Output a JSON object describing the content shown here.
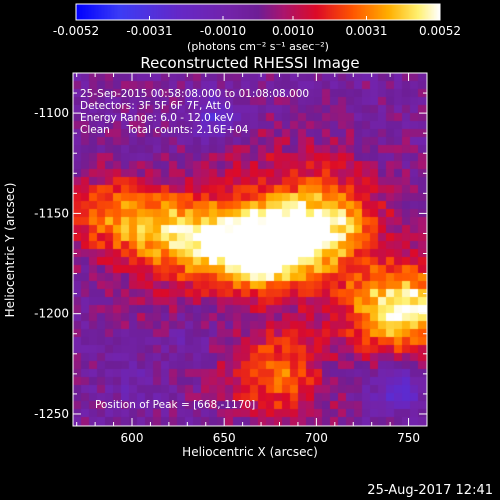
{
  "chart_data": {
    "type": "heatmap",
    "title": "Reconstructed RHESSI Image",
    "xlabel": "Heliocentric X (arcsec)",
    "ylabel": "Heliocentric Y (arcsec)",
    "xlim": [
      568,
      760
    ],
    "ylim": [
      -1256,
      -1080
    ],
    "xticks": [
      600,
      650,
      700,
      750
    ],
    "xtick_labels": [
      "600",
      "650",
      "700",
      "750"
    ],
    "yticks": [
      -1100,
      -1150,
      -1200,
      -1250
    ],
    "ytick_labels": [
      "-1100",
      "-1150",
      "-1200",
      "-1250"
    ],
    "colorbar": {
      "unit_label": "(photons cm⁻² s⁻¹ asec⁻²)",
      "range": [
        -0.0052,
        0.0052
      ],
      "tick_values": [
        -0.0052,
        -0.0031,
        -0.001,
        0.001,
        0.0031,
        0.0052
      ],
      "tick_labels": [
        "-0.0052",
        "-0.0031",
        "-0.0010",
        "0.0010",
        "0.0031",
        "0.0052"
      ]
    },
    "annotations": {
      "time_range": "25-Sep-2015 00:58:08.000 to 01:08:08.000",
      "detectors": "Detectors: 3F 5F 6F 7F, Att 0",
      "energy": "Energy Range: 6.0 - 12.0 keV",
      "clean_counts": "Clean     Total counts: 2.16E+04",
      "peak": "Position of Peak = [668,-1170]"
    },
    "sources": [
      {
        "x": 668,
        "y": -1170,
        "value": 0.0052
      },
      {
        "x": 625,
        "y": -1160,
        "value": 0.0036
      },
      {
        "x": 690,
        "y": -1158,
        "value": 0.0033
      },
      {
        "x": 712,
        "y": -1154,
        "value": 0.0022
      },
      {
        "x": 588,
        "y": -1150,
        "value": 0.0026
      },
      {
        "x": 752,
        "y": -1200,
        "value": 0.004
      },
      {
        "x": 739,
        "y": -1193,
        "value": 0.0018
      },
      {
        "x": 680,
        "y": -1225,
        "value": 0.002
      },
      {
        "x": 682,
        "y": -1238,
        "value": 0.0016
      },
      {
        "x": 664,
        "y": -1122,
        "value": 0.0009
      },
      {
        "x": 708,
        "y": -1125,
        "value": 0.0008
      },
      {
        "x": 608,
        "y": -1198,
        "value": 0.0006
      }
    ],
    "negative_regions": [
      {
        "x": 645,
        "y": -1103,
        "value": -0.0024
      },
      {
        "x": 745,
        "y": -1238,
        "value": -0.0024
      },
      {
        "x": 630,
        "y": -1212,
        "value": -0.0008
      },
      {
        "x": 705,
        "y": -1232,
        "value": -0.0008
      },
      {
        "x": 600,
        "y": -1235,
        "value": -0.0007
      }
    ]
  },
  "footer": {
    "timestamp": "25-Aug-2017 12:41"
  }
}
